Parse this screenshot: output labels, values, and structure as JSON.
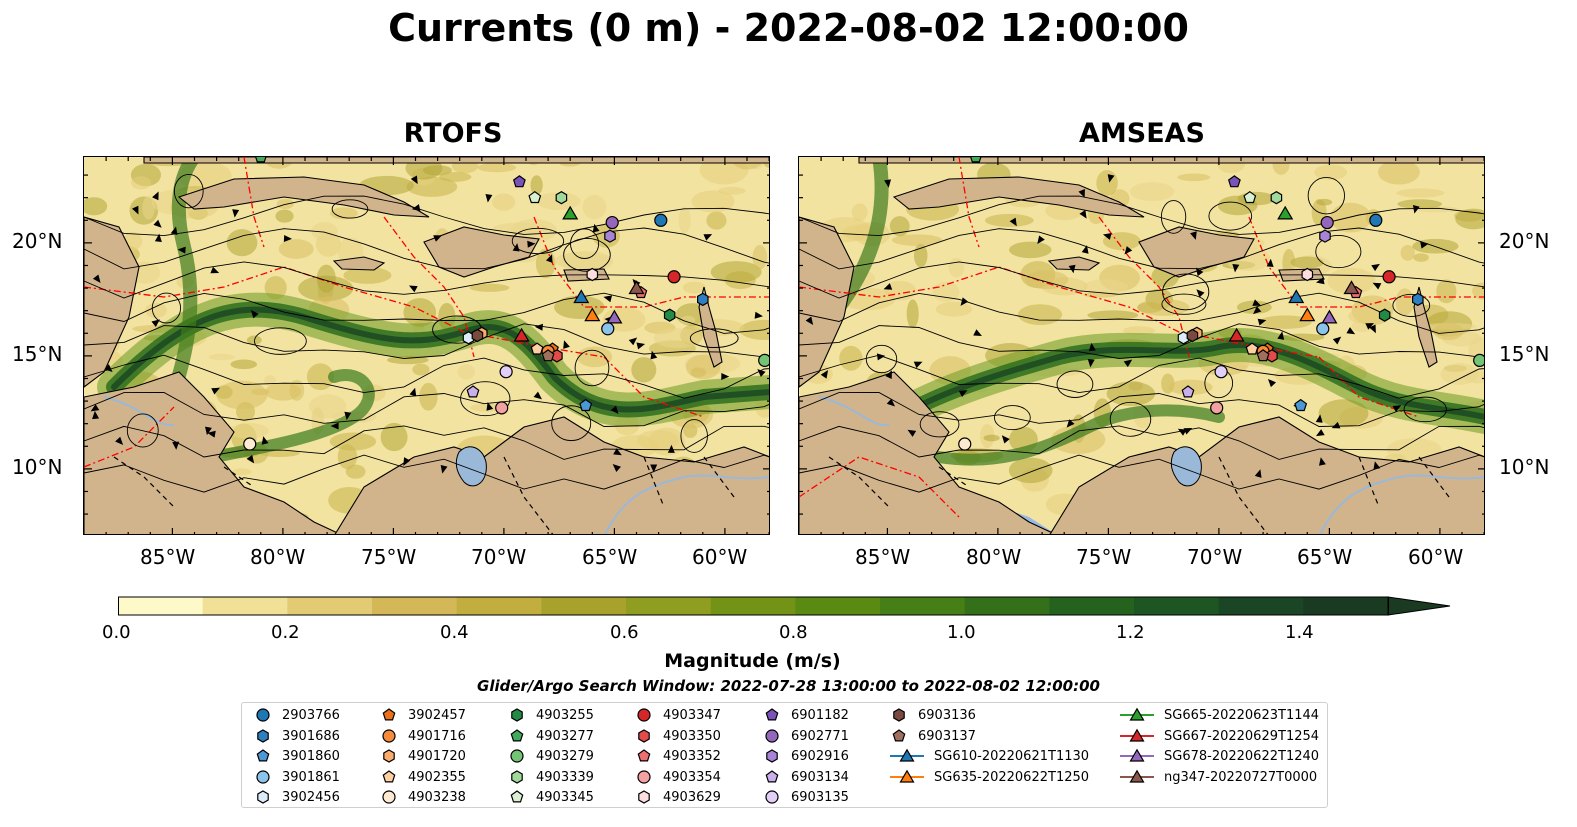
{
  "title": "Currents (0 m) - 2022-08-02 12:00:00",
  "panels": [
    {
      "title": "RTOFS",
      "kind": "rtofs"
    },
    {
      "title": "AMSEAS",
      "kind": "amseas"
    }
  ],
  "lat_labels": [
    "20°N",
    "15°N",
    "10°N"
  ],
  "lon_labels": [
    "85°W",
    "80°W",
    "75°W",
    "70°W",
    "65°W",
    "60°W"
  ],
  "colorbar": {
    "label": "Magnitude (m/s)",
    "ticks": [
      "0.0",
      "0.2",
      "0.4",
      "0.6",
      "0.8",
      "1.0",
      "1.2",
      "1.4"
    ],
    "range": [
      0,
      1.6
    ],
    "extend": "max",
    "colors": [
      "#fdf9c8",
      "#f1e196",
      "#e3cb74",
      "#d4b757",
      "#c1ae3f",
      "#a8a22c",
      "#8f9d20",
      "#739317",
      "#5b8a13",
      "#467f16",
      "#346f19",
      "#24621e",
      "#1d5523",
      "#1b4626",
      "#1a3a21"
    ]
  },
  "search_window": "Glider/Argo Search Window: 2022-07-28 13:00:00 to 2022-08-02 12:00:00",
  "legend": [
    {
      "label": "2903766",
      "marker": "circle",
      "color": "#1f77b4"
    },
    {
      "label": "3901686",
      "marker": "hexagon",
      "color": "#2d7fc0"
    },
    {
      "label": "3901860",
      "marker": "pentagon",
      "color": "#4a98d6"
    },
    {
      "label": "3901861",
      "marker": "circle",
      "color": "#8cc3ea"
    },
    {
      "label": "3902456",
      "marker": "hexagon",
      "color": "#dcecf8"
    },
    {
      "label": "3902457",
      "marker": "pentagon",
      "color": "#ec7014"
    },
    {
      "label": "4901716",
      "marker": "circle",
      "color": "#f68b3c"
    },
    {
      "label": "4901720",
      "marker": "hexagon",
      "color": "#fbab6b"
    },
    {
      "label": "4902355",
      "marker": "pentagon",
      "color": "#fdd0a2"
    },
    {
      "label": "4903238",
      "marker": "circle",
      "color": "#feead2"
    },
    {
      "label": "4903255",
      "marker": "hexagon",
      "color": "#238b45"
    },
    {
      "label": "4903277",
      "marker": "pentagon",
      "color": "#41ab5d"
    },
    {
      "label": "4903279",
      "marker": "circle",
      "color": "#74c476"
    },
    {
      "label": "4903339",
      "marker": "hexagon",
      "color": "#a1d99b"
    },
    {
      "label": "4903345",
      "marker": "pentagon",
      "color": "#d9f0d3"
    },
    {
      "label": "4903347",
      "marker": "circle",
      "color": "#d62728"
    },
    {
      "label": "4903350",
      "marker": "hexagon",
      "color": "#e34a4a"
    },
    {
      "label": "4903352",
      "marker": "pentagon",
      "color": "#ef6f6f"
    },
    {
      "label": "4903354",
      "marker": "circle",
      "color": "#f4a1a1"
    },
    {
      "label": "4903629",
      "marker": "hexagon",
      "color": "#fcdede"
    },
    {
      "label": "6901182",
      "marker": "pentagon",
      "color": "#7b52b9"
    },
    {
      "label": "6902771",
      "marker": "circle",
      "color": "#9467bd"
    },
    {
      "label": "6902916",
      "marker": "hexagon",
      "color": "#a984d6"
    },
    {
      "label": "6903134",
      "marker": "pentagon",
      "color": "#c9b0ec"
    },
    {
      "label": "6903135",
      "marker": "circle",
      "color": "#e2cff7"
    },
    {
      "label": "6903136",
      "marker": "hexagon",
      "color": "#7b4a3f"
    },
    {
      "label": "6903137",
      "marker": "pentagon",
      "color": "#a0705f"
    },
    {
      "label": "SG610-20220621T1130",
      "marker": "triangle",
      "color": "#1f77b4",
      "line": true
    },
    {
      "label": "SG635-20220622T1250",
      "marker": "triangle",
      "color": "#ff7f0e",
      "line": true
    },
    {
      "label": "SG665-20220623T1144",
      "marker": "triangle",
      "color": "#2ca02c",
      "line": true
    },
    {
      "label": "SG667-20220629T1254",
      "marker": "triangle",
      "color": "#d62728",
      "line": true
    },
    {
      "label": "SG678-20220622T1240",
      "marker": "triangle",
      "color": "#9467bd",
      "line": true
    },
    {
      "label": "ng347-20220727T0000",
      "marker": "triangle",
      "color": "#8c564b",
      "line": true
    }
  ],
  "colors": {
    "land": "#d2b48c",
    "lake": "#9ab8d8",
    "ocean_masked": "#9ab8e0",
    "eez": "#ff0000",
    "border": "#000000"
  }
}
